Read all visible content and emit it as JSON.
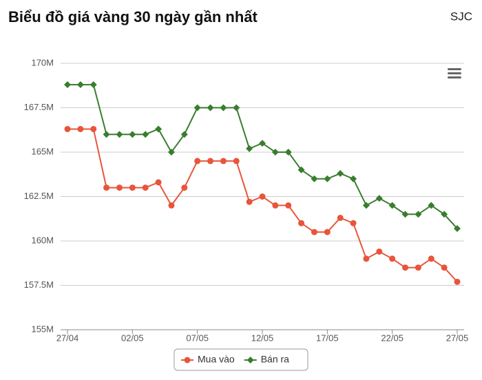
{
  "chart_data": {
    "type": "line",
    "title": "Biểu đồ giá vàng 30 ngày gần nhất",
    "subtitle": "SJC",
    "categories": [
      "27/04",
      null,
      null,
      null,
      null,
      "02/05",
      null,
      null,
      null,
      null,
      "07/05",
      null,
      null,
      null,
      null,
      "12/05",
      null,
      null,
      null,
      null,
      "17/05",
      null,
      null,
      null,
      null,
      "22/05",
      null,
      null,
      null,
      null,
      "27/05"
    ],
    "series": [
      {
        "name": "Mua vào",
        "color": "#e8553b",
        "marker": "circle",
        "values": [
          166.3,
          166.3,
          166.3,
          163.0,
          163.0,
          163.0,
          163.0,
          163.3,
          162.0,
          163.0,
          164.5,
          164.5,
          164.5,
          164.5,
          162.2,
          162.5,
          162.0,
          162.0,
          161.0,
          160.5,
          160.5,
          161.3,
          161.0,
          159.0,
          159.4,
          159.0,
          158.5,
          158.5,
          159.0,
          158.5,
          157.7
        ]
      },
      {
        "name": "Bán ra",
        "color": "#3a7d2f",
        "marker": "diamond",
        "values": [
          168.8,
          168.8,
          168.8,
          166.0,
          166.0,
          166.0,
          166.0,
          166.3,
          165.0,
          166.0,
          167.5,
          167.5,
          167.5,
          167.5,
          165.2,
          165.5,
          165.0,
          165.0,
          164.0,
          163.5,
          163.5,
          163.8,
          163.5,
          162.0,
          162.4,
          162.0,
          161.5,
          161.5,
          162.0,
          161.5,
          160.7
        ]
      }
    ],
    "ylim": [
      155,
      170
    ],
    "yticks": [
      {
        "value": 155,
        "label": "155M"
      },
      {
        "value": 157.5,
        "label": "157.5M"
      },
      {
        "value": 160,
        "label": "160M"
      },
      {
        "value": 162.5,
        "label": "162.5M"
      },
      {
        "value": 165,
        "label": "165M"
      },
      {
        "value": 167.5,
        "label": "167.5M"
      },
      {
        "value": 170,
        "label": "170M"
      }
    ],
    "grid": true,
    "legend": "bottom"
  }
}
